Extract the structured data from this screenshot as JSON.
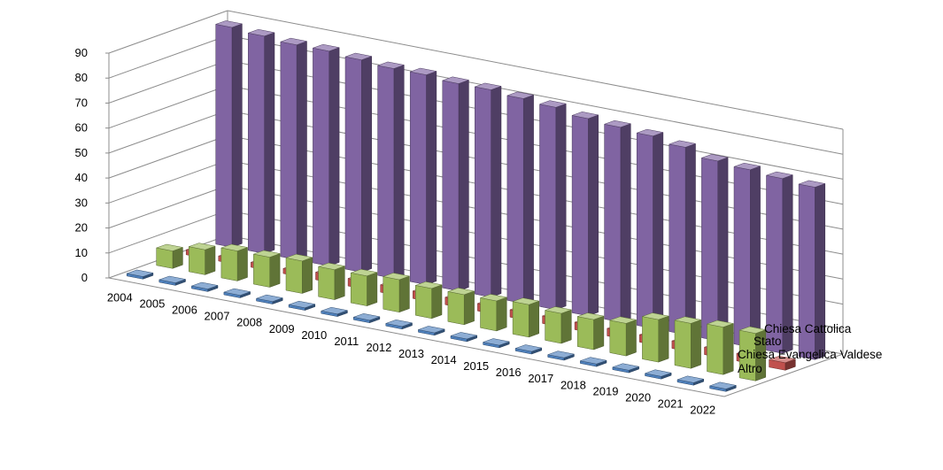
{
  "chart_data": {
    "type": "bar",
    "title": "",
    "xlabel": "",
    "ylabel": "",
    "ylim": [
      0,
      90
    ],
    "yticks": [
      "0",
      "10",
      "20",
      "30",
      "40",
      "50",
      "60",
      "70",
      "80",
      "90"
    ],
    "grid": true,
    "categories": [
      "2004",
      "2005",
      "2006",
      "2007",
      "2008",
      "2009",
      "2010",
      "2011",
      "2012",
      "2013",
      "2014",
      "2015",
      "2016",
      "2017",
      "2018",
      "2019",
      "2020",
      "2021",
      "2022"
    ],
    "series": [
      {
        "name": "Altro",
        "color": "#4f81bd",
        "values": [
          1,
          1,
          1,
          1,
          1,
          1,
          1,
          1,
          1,
          1,
          1,
          1,
          1,
          1,
          1,
          1,
          1,
          1,
          1
        ]
      },
      {
        "name": "Chiesa Evangelica Valdese",
        "color": "#9bbb59",
        "values": [
          7,
          10,
          12,
          12,
          13,
          12,
          12,
          13,
          12,
          12,
          12,
          13,
          12,
          12,
          13,
          17,
          18,
          19,
          19
        ]
      },
      {
        "name": "Stato",
        "color": "#c0504d",
        "values": [
          2,
          2,
          2,
          2,
          3,
          3,
          3,
          3,
          3,
          3,
          3,
          3,
          3,
          3,
          3,
          3,
          3,
          3,
          3
        ]
      },
      {
        "name": "Chiesa Cattolica",
        "color": "#8064a2",
        "values": [
          88,
          87,
          86,
          86,
          85,
          84,
          84,
          83,
          83,
          82,
          81,
          79,
          78,
          77,
          75,
          72,
          71,
          70,
          69
        ]
      }
    ]
  }
}
